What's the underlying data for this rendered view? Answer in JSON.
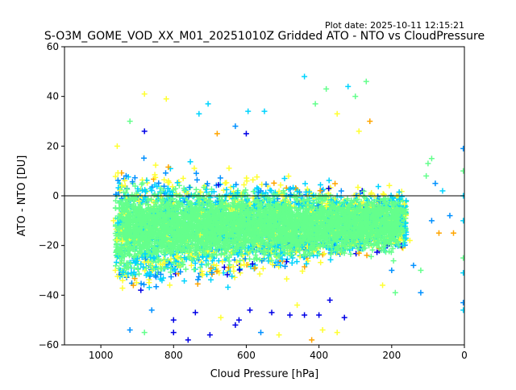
{
  "plot_date": "Plot date: 2025-10-11 12:15:21",
  "chart_data": {
    "type": "scatter",
    "title": "S-O3M_GOME_VOD_XX_M01_20251010Z Gridded ATO - NTO vs CloudPressure",
    "xlabel": "Cloud Pressure [hPa]",
    "ylabel": "ATO - NTO [DU]",
    "xlim": [
      1100,
      0
    ],
    "ylim": [
      -60,
      60
    ],
    "x_ticks": [
      1000,
      800,
      600,
      400,
      200,
      0
    ],
    "y_ticks": [
      -60,
      -40,
      -20,
      0,
      20,
      40,
      60
    ],
    "x_tick_labels": [
      "1000",
      "800",
      "600",
      "400",
      "200",
      "0"
    ],
    "y_tick_labels": [
      "−60",
      "−40",
      "−20",
      "0",
      "20",
      "40",
      "60"
    ],
    "reference_line_y": 0,
    "marker": "plus",
    "grid": false,
    "legend": "none",
    "point_colors": [
      "#64ff8c",
      "#ffff32",
      "#00d4ff",
      "#0090ff",
      "#ffa500",
      "#0000e6"
    ],
    "bulk_region": {
      "x_range": [
        960,
        160
      ],
      "y_center_range": [
        -25,
        5
      ],
      "y_spread": 22
    },
    "points": [
      {
        "x": 880,
        "y": 41,
        "c": "#ffff32"
      },
      {
        "x": 820,
        "y": 39,
        "c": "#ffff32"
      },
      {
        "x": 440,
        "y": 48,
        "c": "#00d4ff"
      },
      {
        "x": 270,
        "y": 46,
        "c": "#64ff8c"
      },
      {
        "x": 320,
        "y": 44,
        "c": "#00d4ff"
      },
      {
        "x": 380,
        "y": 43,
        "c": "#64ff8c"
      },
      {
        "x": 705,
        "y": 37,
        "c": "#00d4ff"
      },
      {
        "x": 595,
        "y": 34,
        "c": "#00d4ff"
      },
      {
        "x": 550,
        "y": 34,
        "c": "#00d4ff"
      },
      {
        "x": 920,
        "y": 30,
        "c": "#64ff8c"
      },
      {
        "x": 730,
        "y": 33,
        "c": "#00d4ff"
      },
      {
        "x": 410,
        "y": 37,
        "c": "#64ff8c"
      },
      {
        "x": 300,
        "y": 40,
        "c": "#64ff8c"
      },
      {
        "x": 260,
        "y": 30,
        "c": "#ffa500"
      },
      {
        "x": 90,
        "y": 15,
        "c": "#64ff8c"
      },
      {
        "x": 100,
        "y": 13,
        "c": "#64ff8c"
      },
      {
        "x": 105,
        "y": 8,
        "c": "#64ff8c"
      },
      {
        "x": 80,
        "y": 5,
        "c": "#0090ff"
      },
      {
        "x": 60,
        "y": 2,
        "c": "#00d4ff"
      },
      {
        "x": 3,
        "y": 19,
        "c": "#0090ff"
      },
      {
        "x": 3,
        "y": 10,
        "c": "#64ff8c"
      },
      {
        "x": 3,
        "y": 0,
        "c": "#00d4ff"
      },
      {
        "x": 3,
        "y": -10,
        "c": "#00d4ff"
      },
      {
        "x": 3,
        "y": -25,
        "c": "#64ff8c"
      },
      {
        "x": 3,
        "y": -31,
        "c": "#00d4ff"
      },
      {
        "x": 3,
        "y": -43,
        "c": "#0090ff"
      },
      {
        "x": 3,
        "y": -46,
        "c": "#00d4ff"
      },
      {
        "x": 70,
        "y": -15,
        "c": "#ffa500"
      },
      {
        "x": 90,
        "y": -10,
        "c": "#0090ff"
      },
      {
        "x": 120,
        "y": -30,
        "c": "#64ff8c"
      },
      {
        "x": 140,
        "y": -28,
        "c": "#0090ff"
      },
      {
        "x": 120,
        "y": -39,
        "c": "#0090ff"
      },
      {
        "x": 190,
        "y": -39,
        "c": "#64ff8c"
      },
      {
        "x": 225,
        "y": -36,
        "c": "#ffff32"
      },
      {
        "x": 920,
        "y": -54,
        "c": "#0090ff"
      },
      {
        "x": 880,
        "y": -55,
        "c": "#64ff8c"
      },
      {
        "x": 800,
        "y": -55,
        "c": "#0000e6"
      },
      {
        "x": 760,
        "y": -58,
        "c": "#0000e6"
      },
      {
        "x": 700,
        "y": -56,
        "c": "#0000e6"
      },
      {
        "x": 630,
        "y": -52,
        "c": "#0000e6"
      },
      {
        "x": 560,
        "y": -55,
        "c": "#0090ff"
      },
      {
        "x": 510,
        "y": -56,
        "c": "#ffff32"
      },
      {
        "x": 420,
        "y": -58,
        "c": "#ffa500"
      },
      {
        "x": 440,
        "y": -48,
        "c": "#0000e6"
      },
      {
        "x": 390,
        "y": -54,
        "c": "#ffff32"
      },
      {
        "x": 330,
        "y": -49,
        "c": "#0000e6"
      },
      {
        "x": 350,
        "y": -55,
        "c": "#ffff32"
      },
      {
        "x": 890,
        "y": -38,
        "c": "#0000e6"
      },
      {
        "x": 860,
        "y": -46,
        "c": "#0090ff"
      },
      {
        "x": 800,
        "y": -50,
        "c": "#0000e6"
      },
      {
        "x": 740,
        "y": -47,
        "c": "#0000e6"
      },
      {
        "x": 670,
        "y": -49,
        "c": "#ffff32"
      },
      {
        "x": 620,
        "y": -50,
        "c": "#0000e6"
      },
      {
        "x": 590,
        "y": -46,
        "c": "#0000e6"
      },
      {
        "x": 530,
        "y": -47,
        "c": "#0000e6"
      },
      {
        "x": 480,
        "y": -48,
        "c": "#0000e6"
      },
      {
        "x": 460,
        "y": -44,
        "c": "#ffff32"
      },
      {
        "x": 400,
        "y": -48,
        "c": "#0000e6"
      },
      {
        "x": 370,
        "y": -42,
        "c": "#0000e6"
      },
      {
        "x": 880,
        "y": 26,
        "c": "#0000e6"
      },
      {
        "x": 630,
        "y": 28,
        "c": "#0090ff"
      },
      {
        "x": 600,
        "y": 25,
        "c": "#0000e6"
      },
      {
        "x": 680,
        "y": 25,
        "c": "#ffa500"
      },
      {
        "x": 290,
        "y": 26,
        "c": "#ffff32"
      },
      {
        "x": 350,
        "y": 33,
        "c": "#ffff32"
      },
      {
        "x": 40,
        "y": -8,
        "c": "#0090ff"
      },
      {
        "x": 30,
        "y": -15,
        "c": "#ffa500"
      },
      {
        "x": 150,
        "y": -18,
        "c": "#ffff32"
      },
      {
        "x": 200,
        "y": -30,
        "c": "#0090ff"
      },
      {
        "x": 955,
        "y": 20,
        "c": "#ffff32"
      },
      {
        "x": 960,
        "y": -30,
        "c": "#ffff32"
      },
      {
        "x": 965,
        "y": -10,
        "c": "#ffff32"
      }
    ]
  }
}
